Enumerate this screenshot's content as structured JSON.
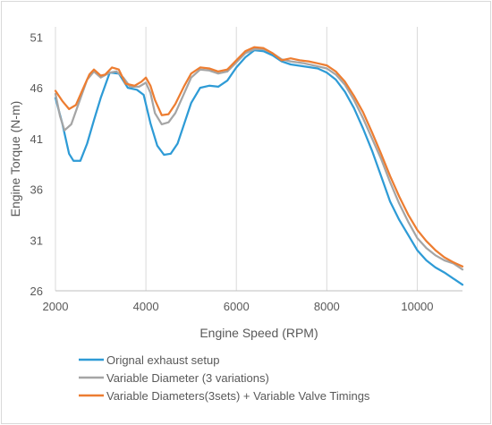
{
  "chart_data": {
    "type": "line",
    "title": "",
    "xlabel": "Engine Speed (RPM)",
    "ylabel": "Engine Torque (N-m)",
    "xlim": [
      2000,
      11000
    ],
    "ylim": [
      26,
      52
    ],
    "x_ticks": [
      2000,
      4000,
      6000,
      8000,
      10000
    ],
    "y_ticks": [
      26,
      31,
      36,
      41,
      46,
      51
    ],
    "grid": "vertical",
    "legend_position": "bottom",
    "series": [
      {
        "name": "Orignal exhaust setup",
        "color": "#2e9bd6",
        "points": [
          [
            2000,
            45.0
          ],
          [
            2150,
            42.5
          ],
          [
            2300,
            39.5
          ],
          [
            2400,
            38.8
          ],
          [
            2550,
            38.8
          ],
          [
            2700,
            40.5
          ],
          [
            2850,
            42.8
          ],
          [
            3000,
            45.0
          ],
          [
            3200,
            47.5
          ],
          [
            3400,
            47.4
          ],
          [
            3600,
            46.0
          ],
          [
            3800,
            45.8
          ],
          [
            3950,
            45.3
          ],
          [
            4100,
            42.5
          ],
          [
            4250,
            40.3
          ],
          [
            4400,
            39.4
          ],
          [
            4550,
            39.5
          ],
          [
            4700,
            40.5
          ],
          [
            4850,
            42.5
          ],
          [
            5000,
            44.5
          ],
          [
            5200,
            46.0
          ],
          [
            5400,
            46.2
          ],
          [
            5600,
            46.1
          ],
          [
            5800,
            46.7
          ],
          [
            6000,
            48.0
          ],
          [
            6200,
            49.0
          ],
          [
            6400,
            49.7
          ],
          [
            6600,
            49.6
          ],
          [
            6800,
            49.2
          ],
          [
            7000,
            48.6
          ],
          [
            7200,
            48.3
          ],
          [
            7500,
            48.1
          ],
          [
            7800,
            47.9
          ],
          [
            8000,
            47.5
          ],
          [
            8200,
            46.8
          ],
          [
            8400,
            45.6
          ],
          [
            8600,
            44.0
          ],
          [
            8800,
            42.0
          ],
          [
            9000,
            39.8
          ],
          [
            9200,
            37.3
          ],
          [
            9400,
            34.8
          ],
          [
            9600,
            33.0
          ],
          [
            9800,
            31.5
          ],
          [
            10000,
            30.0
          ],
          [
            10200,
            29.0
          ],
          [
            10400,
            28.3
          ],
          [
            10600,
            27.8
          ],
          [
            10800,
            27.2
          ],
          [
            11000,
            26.6
          ]
        ]
      },
      {
        "name": "Variable Diameter (3 variations)",
        "color": "#a5a5a5",
        "points": [
          [
            2000,
            45.4
          ],
          [
            2100,
            43.2
          ],
          [
            2200,
            41.8
          ],
          [
            2350,
            42.4
          ],
          [
            2500,
            44.3
          ],
          [
            2700,
            46.8
          ],
          [
            2850,
            47.6
          ],
          [
            3000,
            47.0
          ],
          [
            3200,
            47.5
          ],
          [
            3350,
            47.6
          ],
          [
            3500,
            47.0
          ],
          [
            3650,
            46.1
          ],
          [
            3850,
            46.1
          ],
          [
            4000,
            46.5
          ],
          [
            4100,
            45.5
          ],
          [
            4200,
            43.5
          ],
          [
            4350,
            42.4
          ],
          [
            4500,
            42.6
          ],
          [
            4650,
            43.5
          ],
          [
            4850,
            45.5
          ],
          [
            5000,
            47.0
          ],
          [
            5200,
            47.8
          ],
          [
            5400,
            47.7
          ],
          [
            5600,
            47.4
          ],
          [
            5800,
            47.6
          ],
          [
            6000,
            48.5
          ],
          [
            6200,
            49.4
          ],
          [
            6400,
            49.8
          ],
          [
            6600,
            49.8
          ],
          [
            6800,
            49.4
          ],
          [
            7000,
            48.8
          ],
          [
            7200,
            48.6
          ],
          [
            7500,
            48.4
          ],
          [
            7800,
            48.1
          ],
          [
            8000,
            47.9
          ],
          [
            8200,
            47.3
          ],
          [
            8400,
            46.3
          ],
          [
            8600,
            44.8
          ],
          [
            8800,
            43.0
          ],
          [
            9000,
            41.0
          ],
          [
            9200,
            39.0
          ],
          [
            9400,
            36.7
          ],
          [
            9600,
            34.6
          ],
          [
            9800,
            32.8
          ],
          [
            10000,
            31.2
          ],
          [
            10200,
            30.2
          ],
          [
            10400,
            29.5
          ],
          [
            10600,
            29.0
          ],
          [
            10800,
            28.7
          ],
          [
            11000,
            28.1
          ]
        ]
      },
      {
        "name": "Variable Diameters(3sets) + Variable Valve Timings",
        "color": "#ed7d31",
        "points": [
          [
            2000,
            45.7
          ],
          [
            2150,
            44.7
          ],
          [
            2300,
            43.9
          ],
          [
            2450,
            44.3
          ],
          [
            2600,
            45.8
          ],
          [
            2750,
            47.3
          ],
          [
            2850,
            47.8
          ],
          [
            3000,
            47.2
          ],
          [
            3100,
            47.3
          ],
          [
            3250,
            48.0
          ],
          [
            3400,
            47.8
          ],
          [
            3550,
            46.4
          ],
          [
            3750,
            46.2
          ],
          [
            3900,
            46.6
          ],
          [
            4000,
            47.0
          ],
          [
            4100,
            46.2
          ],
          [
            4200,
            44.8
          ],
          [
            4350,
            43.3
          ],
          [
            4500,
            43.4
          ],
          [
            4650,
            44.4
          ],
          [
            4850,
            46.2
          ],
          [
            5000,
            47.4
          ],
          [
            5200,
            48.0
          ],
          [
            5400,
            47.9
          ],
          [
            5600,
            47.6
          ],
          [
            5800,
            47.8
          ],
          [
            6000,
            48.7
          ],
          [
            6200,
            49.6
          ],
          [
            6400,
            50.0
          ],
          [
            6600,
            49.9
          ],
          [
            6800,
            49.4
          ],
          [
            7000,
            48.7
          ],
          [
            7200,
            48.9
          ],
          [
            7400,
            48.7
          ],
          [
            7600,
            48.6
          ],
          [
            7800,
            48.4
          ],
          [
            8000,
            48.2
          ],
          [
            8200,
            47.6
          ],
          [
            8400,
            46.6
          ],
          [
            8600,
            45.2
          ],
          [
            8800,
            43.6
          ],
          [
            9000,
            41.6
          ],
          [
            9200,
            39.5
          ],
          [
            9400,
            37.3
          ],
          [
            9600,
            35.3
          ],
          [
            9800,
            33.5
          ],
          [
            10000,
            32.0
          ],
          [
            10200,
            30.9
          ],
          [
            10400,
            30.0
          ],
          [
            10600,
            29.3
          ],
          [
            10800,
            28.8
          ],
          [
            11000,
            28.4
          ]
        ]
      }
    ]
  }
}
